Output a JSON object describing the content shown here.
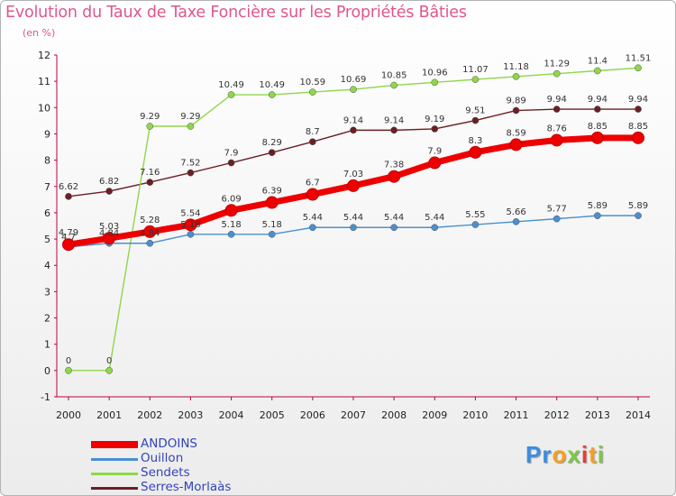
{
  "title": "Evolution du Taux de Taxe Foncière sur les Propriétés Bâties",
  "subtitle": "(en %)",
  "logo_text": "Proxiti",
  "chart_data": {
    "type": "line",
    "title": "Evolution du Taux de Taxe Foncière sur les Propriétés Bâties",
    "ylabel": "(en %)",
    "xlabel": "",
    "ylim": [
      -1,
      12
    ],
    "yticks": [
      -1,
      0,
      1,
      2,
      3,
      4,
      5,
      6,
      7,
      8,
      9,
      10,
      11,
      12
    ],
    "grid": false,
    "legend_position": "bottom-left",
    "categories": [
      "2000",
      "2001",
      "2002",
      "2003",
      "2004",
      "2005",
      "2006",
      "2007",
      "2008",
      "2009",
      "2010",
      "2011",
      "2012",
      "2013",
      "2014"
    ],
    "series": [
      {
        "name": "Serres-Morlaàs",
        "color": "#6b1f24",
        "values": [
          6.62,
          6.82,
          7.16,
          7.52,
          7.9,
          8.29,
          8.7,
          9.14,
          9.14,
          9.19,
          9.51,
          9.89,
          9.94,
          9.94,
          9.94
        ],
        "labels": [
          "6.62",
          "6.82",
          "7.16",
          "7.52",
          "7.9",
          "8.29",
          "8.7",
          "9.14",
          "9.14",
          "9.19",
          "9.51",
          "9.89",
          "9.94",
          "9.94",
          "9.94"
        ]
      },
      {
        "name": "Sendets",
        "color": "#8fd64a",
        "values": [
          0,
          0,
          9.29,
          9.29,
          10.49,
          10.49,
          10.59,
          10.69,
          10.85,
          10.96,
          11.07,
          11.18,
          11.29,
          11.4,
          11.51
        ],
        "labels": [
          "0",
          "0",
          "9.29",
          "9.29",
          "10.49",
          "10.49",
          "10.59",
          "10.69",
          "10.85",
          "10.96",
          "11.07",
          "11.18",
          "11.29",
          "11.4",
          "11.51"
        ]
      },
      {
        "name": "Ouillon",
        "color": "#4a8fd0",
        "values": [
          4.7,
          4.84,
          4.84,
          5.18,
          5.18,
          5.18,
          5.44,
          5.44,
          5.44,
          5.44,
          5.55,
          5.66,
          5.77,
          5.89,
          5.89
        ],
        "labels": [
          "4.7",
          "4.84",
          "4.84",
          "5.18",
          "5.18",
          "5.18",
          "5.44",
          "5.44",
          "5.44",
          "5.44",
          "5.55",
          "5.66",
          "5.77",
          "5.89",
          "5.89"
        ]
      },
      {
        "name": "ANDOINS",
        "color": "#ee0000",
        "values": [
          4.79,
          5.03,
          5.28,
          5.54,
          6.09,
          6.39,
          6.7,
          7.03,
          7.38,
          7.9,
          8.3,
          8.59,
          8.76,
          8.85,
          8.85
        ],
        "labels": [
          "4.79",
          "5.03",
          "5.28",
          "5.54",
          "6.09",
          "6.39",
          "6.7",
          "7.03",
          "7.38",
          "7.9",
          "8.3",
          "8.59",
          "8.76",
          "8.85",
          "8.85"
        ]
      }
    ],
    "legend": [
      "ANDOINS",
      "Ouillon",
      "Sendets",
      "Serres-Morlaàs"
    ]
  }
}
